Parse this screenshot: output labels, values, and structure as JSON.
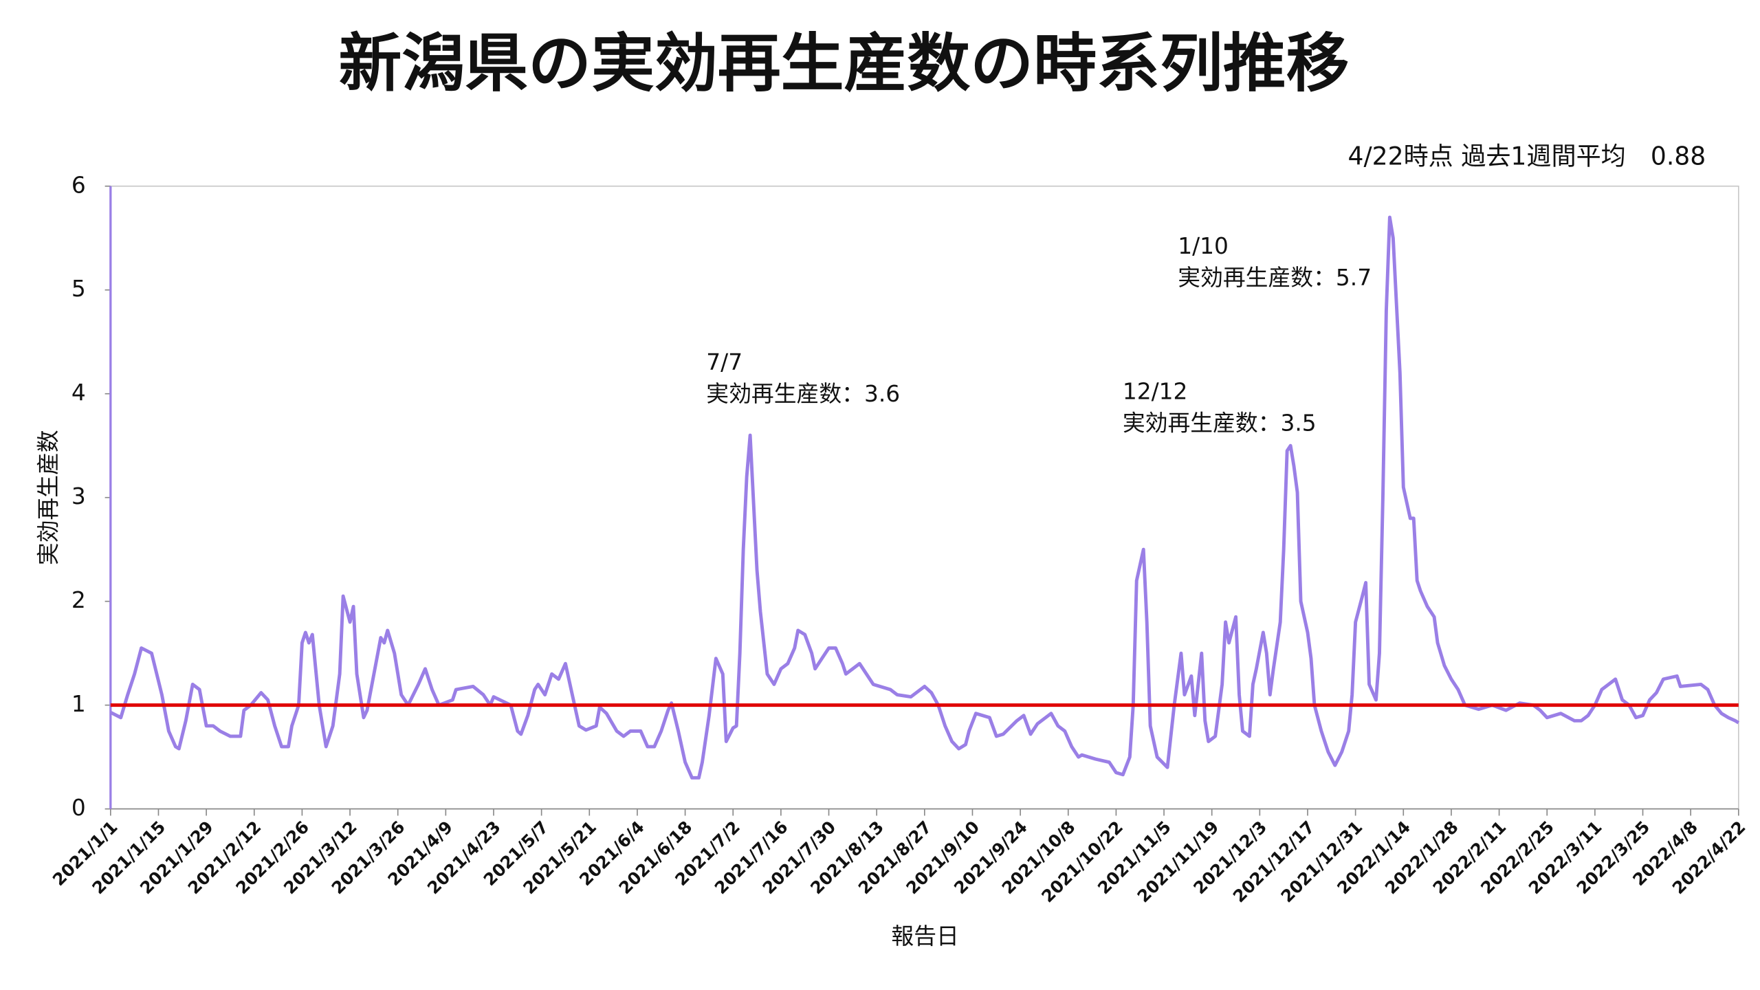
{
  "chart_data": {
    "type": "line",
    "title": "新潟県の実効再生産数の時系列推移",
    "subtitle": "4/22時点 過去1週間平均　0.88",
    "y_label": "実効再生産数",
    "x_label": "報告日",
    "ylim": [
      0,
      6
    ],
    "yticks": [
      0,
      1,
      2,
      3,
      4,
      5,
      6
    ],
    "xlim": [
      "2021/1/1",
      "2022/4/22"
    ],
    "xticks": [
      "2021/1/1",
      "2021/1/15",
      "2021/1/29",
      "2021/2/12",
      "2021/2/26",
      "2021/3/12",
      "2021/3/26",
      "2021/4/9",
      "2021/4/23",
      "2021/5/7",
      "2021/5/21",
      "2021/6/4",
      "2021/6/18",
      "2021/7/2",
      "2021/7/16",
      "2021/7/30",
      "2021/8/13",
      "2021/8/27",
      "2021/9/10",
      "2021/9/24",
      "2021/10/8",
      "2021/10/22",
      "2021/11/5",
      "2021/11/19",
      "2021/12/3",
      "2021/12/17",
      "2021/12/31",
      "2022/1/14",
      "2022/1/28",
      "2022/2/11",
      "2022/2/25",
      "2022/3/11",
      "2022/3/25",
      "2022/4/8",
      "2022/4/22"
    ],
    "reference_line": {
      "value": 1,
      "color": "#e00000"
    },
    "annotations": [
      {
        "lines": [
          "7/7",
          "実効再生産数：3.6"
        ]
      },
      {
        "lines": [
          "12/12",
          "実効再生産数：3.5"
        ]
      },
      {
        "lines": [
          "1/10",
          "実効再生産数：5.7"
        ]
      }
    ],
    "x": [
      "2021/1/1",
      "2021/1/4",
      "2021/1/6",
      "2021/1/8",
      "2021/1/10",
      "2021/1/13",
      "2021/1/16",
      "2021/1/18",
      "2021/1/20",
      "2021/1/21",
      "2021/1/23",
      "2021/1/25",
      "2021/1/27",
      "2021/1/29",
      "2021/1/31",
      "2021/2/2",
      "2021/2/5",
      "2021/2/8",
      "2021/2/9",
      "2021/2/11",
      "2021/2/14",
      "2021/2/16",
      "2021/2/18",
      "2021/2/20",
      "2021/2/22",
      "2021/2/23",
      "2021/2/25",
      "2021/2/26",
      "2021/2/27",
      "2021/2/28",
      "2021/3/1",
      "2021/3/3",
      "2021/3/5",
      "2021/3/7",
      "2021/3/9",
      "2021/3/10",
      "2021/3/12",
      "2021/3/13",
      "2021/3/14",
      "2021/3/16",
      "2021/3/17",
      "2021/3/19",
      "2021/3/21",
      "2021/3/22",
      "2021/3/23",
      "2021/3/25",
      "2021/3/27",
      "2021/3/29",
      "2021/4/1",
      "2021/4/3",
      "2021/4/5",
      "2021/4/7",
      "2021/4/11",
      "2021/4/12",
      "2021/4/17",
      "2021/4/20",
      "2021/4/22",
      "2021/4/23",
      "2021/4/28",
      "2021/4/30",
      "2021/5/1",
      "2021/5/3",
      "2021/5/5",
      "2021/5/6",
      "2021/5/8",
      "2021/5/10",
      "2021/5/12",
      "2021/5/14",
      "2021/5/16",
      "2021/5/18",
      "2021/5/20",
      "2021/5/23",
      "2021/5/24",
      "2021/5/26",
      "2021/5/29",
      "2021/5/31",
      "2021/6/2",
      "2021/6/5",
      "2021/6/7",
      "2021/6/9",
      "2021/6/11",
      "2021/6/13",
      "2021/6/14",
      "2021/6/16",
      "2021/6/18",
      "2021/6/20",
      "2021/6/22",
      "2021/6/23",
      "2021/6/25",
      "2021/6/27",
      "2021/6/29",
      "2021/6/30",
      "2021/7/2",
      "2021/7/3",
      "2021/7/4",
      "2021/7/5",
      "2021/7/6",
      "2021/7/7",
      "2021/7/9",
      "2021/7/10",
      "2021/7/12",
      "2021/7/14",
      "2021/7/16",
      "2021/7/18",
      "2021/7/20",
      "2021/7/21",
      "2021/7/23",
      "2021/7/25",
      "2021/7/26",
      "2021/7/28",
      "2021/7/30",
      "2021/8/1",
      "2021/8/3",
      "2021/8/4",
      "2021/8/8",
      "2021/8/12",
      "2021/8/17",
      "2021/8/19",
      "2021/8/23",
      "2021/8/27",
      "2021/8/29",
      "2021/8/31",
      "2021/9/2",
      "2021/9/4",
      "2021/9/6",
      "2021/9/8",
      "2021/9/9",
      "2021/9/11",
      "2021/9/15",
      "2021/9/17",
      "2021/9/19",
      "2021/9/23",
      "2021/9/25",
      "2021/9/27",
      "2021/9/29",
      "2021/10/3",
      "2021/10/5",
      "2021/10/7",
      "2021/10/9",
      "2021/10/11",
      "2021/10/12",
      "2021/10/16",
      "2021/10/20",
      "2021/10/22",
      "2021/10/24",
      "2021/10/26",
      "2021/10/27",
      "2021/10/28",
      "2021/10/30",
      "2021/10/31",
      "2021/11/1",
      "2021/11/3",
      "2021/11/6",
      "2021/11/8",
      "2021/11/10",
      "2021/11/11",
      "2021/11/13",
      "2021/11/14",
      "2021/11/16",
      "2021/11/17",
      "2021/11/18",
      "2021/11/20",
      "2021/11/22",
      "2021/11/23",
      "2021/11/24",
      "2021/11/26",
      "2021/11/27",
      "2021/11/28",
      "2021/11/30",
      "2021/12/1",
      "2021/12/2",
      "2021/12/4",
      "2021/12/5",
      "2021/12/6",
      "2021/12/7",
      "2021/12/9",
      "2021/12/10",
      "2021/12/11",
      "2021/12/12",
      "2021/12/13",
      "2021/12/14",
      "2021/12/15",
      "2021/12/17",
      "2021/12/18",
      "2021/12/19",
      "2021/12/21",
      "2021/12/23",
      "2021/12/25",
      "2021/12/27",
      "2021/12/29",
      "2021/12/30",
      "2021/12/31",
      "2022/1/2",
      "2022/1/3",
      "2022/1/4",
      "2022/1/6",
      "2022/1/7",
      "2022/1/8",
      "2022/1/9",
      "2022/1/10",
      "2022/1/11",
      "2022/1/13",
      "2022/1/14",
      "2022/1/16",
      "2022/1/17",
      "2022/1/18",
      "2022/1/19",
      "2022/1/21",
      "2022/1/23",
      "2022/1/24",
      "2022/1/26",
      "2022/1/28",
      "2022/1/30",
      "2022/2/1",
      "2022/2/5",
      "2022/2/9",
      "2022/2/13",
      "2022/2/17",
      "2022/2/21",
      "2022/2/23",
      "2022/2/25",
      "2022/3/1",
      "2022/3/5",
      "2022/3/7",
      "2022/3/9",
      "2022/3/11",
      "2022/3/13",
      "2022/3/17",
      "2022/3/19",
      "2022/3/21",
      "2022/3/23",
      "2022/3/25",
      "2022/3/27",
      "2022/3/29",
      "2022/3/31",
      "2022/4/4",
      "2022/4/5",
      "2022/4/11",
      "2022/4/13",
      "2022/4/15",
      "2022/4/17",
      "2022/4/19",
      "2022/4/21",
      "2022/4/22"
    ],
    "series": [
      {
        "color": "#9a7fe6",
        "values": [
          0.93,
          0.88,
          1.1,
          1.3,
          1.55,
          1.5,
          1.1,
          0.75,
          0.6,
          0.58,
          0.85,
          1.2,
          1.15,
          0.8,
          0.8,
          0.75,
          0.7,
          0.7,
          0.95,
          1.0,
          1.12,
          1.05,
          0.8,
          0.6,
          0.6,
          0.8,
          1.0,
          1.6,
          1.7,
          1.6,
          1.68,
          1.0,
          0.6,
          0.8,
          1.3,
          2.05,
          1.8,
          1.95,
          1.3,
          0.88,
          0.95,
          1.3,
          1.65,
          1.6,
          1.72,
          1.5,
          1.1,
          1.0,
          1.2,
          1.35,
          1.15,
          1.0,
          1.05,
          1.15,
          1.18,
          1.1,
          1.0,
          1.08,
          1.0,
          0.75,
          0.72,
          0.9,
          1.15,
          1.2,
          1.1,
          1.3,
          1.25,
          1.4,
          1.1,
          0.8,
          0.76,
          0.8,
          0.98,
          0.92,
          0.75,
          0.7,
          0.75,
          0.75,
          0.6,
          0.6,
          0.75,
          0.95,
          1.02,
          0.75,
          0.45,
          0.3,
          0.3,
          0.45,
          0.9,
          1.45,
          1.3,
          0.65,
          0.78,
          0.8,
          1.5,
          2.5,
          3.2,
          3.6,
          2.3,
          1.9,
          1.3,
          1.2,
          1.35,
          1.4,
          1.55,
          1.72,
          1.68,
          1.5,
          1.35,
          1.45,
          1.55,
          1.55,
          1.4,
          1.3,
          1.4,
          1.2,
          1.15,
          1.1,
          1.08,
          1.18,
          1.12,
          1.0,
          0.8,
          0.65,
          0.58,
          0.62,
          0.75,
          0.92,
          0.88,
          0.7,
          0.72,
          0.85,
          0.9,
          0.72,
          0.82,
          0.92,
          0.8,
          0.75,
          0.6,
          0.5,
          0.52,
          0.48,
          0.45,
          0.35,
          0.33,
          0.5,
          1.0,
          2.2,
          2.5,
          1.8,
          0.8,
          0.5,
          0.4,
          1.0,
          1.5,
          1.1,
          1.28,
          0.9,
          1.5,
          0.85,
          0.65,
          0.7,
          1.2,
          1.8,
          1.6,
          1.85,
          1.1,
          0.75,
          0.7,
          1.2,
          1.35,
          1.7,
          1.5,
          1.1,
          1.35,
          1.8,
          2.5,
          3.45,
          3.5,
          3.3,
          3.05,
          2.0,
          1.7,
          1.45,
          1.0,
          0.75,
          0.55,
          0.42,
          0.55,
          0.75,
          1.1,
          1.8,
          2.05,
          2.18,
          1.2,
          1.05,
          1.5,
          3.0,
          4.8,
          5.7,
          5.5,
          4.2,
          3.1,
          2.8,
          2.8,
          2.2,
          2.1,
          1.95,
          1.85,
          1.6,
          1.38,
          1.25,
          1.15,
          1.0,
          0.96,
          1.0,
          0.95,
          1.02,
          1.0,
          0.95,
          0.88,
          0.92,
          0.85,
          0.85,
          0.9,
          1.0,
          1.15,
          1.25,
          1.05,
          1.0,
          0.88,
          0.9,
          1.05,
          1.12,
          1.25,
          1.28,
          1.18,
          1.2,
          1.15,
          1.0,
          0.92,
          0.88,
          0.85,
          0.83
        ]
      }
    ]
  }
}
